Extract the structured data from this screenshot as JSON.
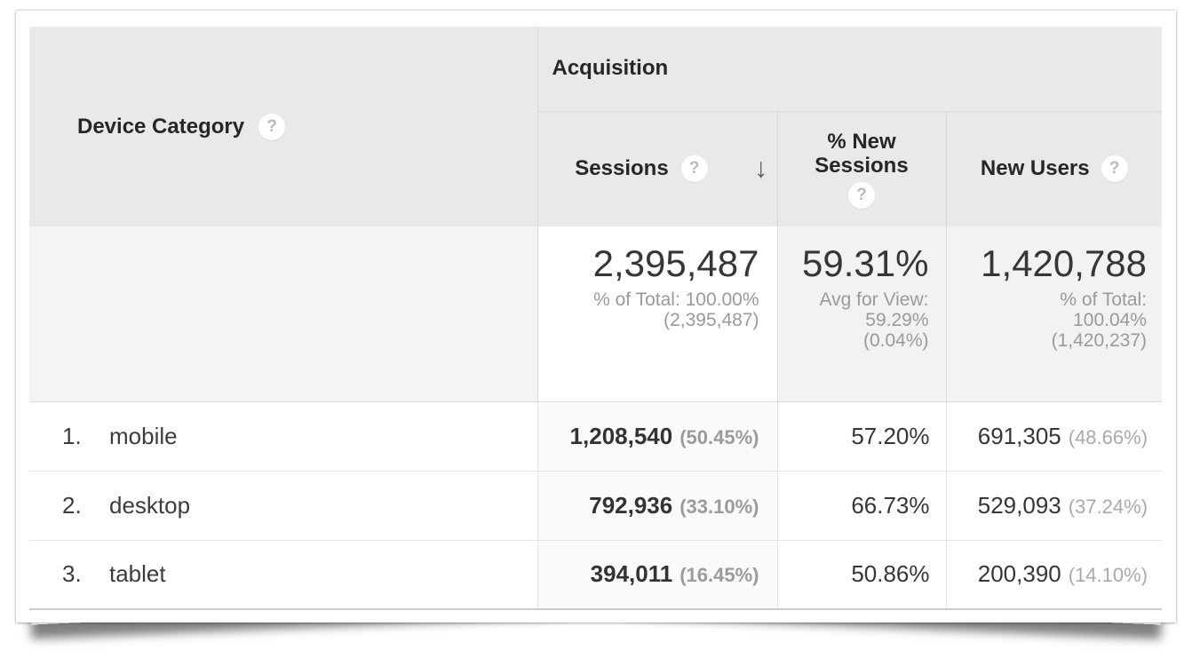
{
  "icons": {
    "help": "?",
    "sort_descending": "↓"
  },
  "colors": {
    "header_bg": "#e9e9e9",
    "header_border": "#d8d8d8",
    "summary_dimension_bg": "#f4f4f4",
    "summary_metric_bg": "#f2f2f2",
    "sorted_column_bg": "#fafafa",
    "row_divider": "#e6e6e6",
    "text_dark": "#333333",
    "text_gray": "#9a9a9a"
  },
  "table": {
    "headers": {
      "dimension": "Device Category",
      "group": "Acquisition",
      "sessions": "Sessions",
      "percent_new_sessions": "% New Sessions",
      "new_users": "New Users"
    },
    "summary": {
      "sessions": {
        "value": "2,395,487",
        "line1": "% of Total: 100.00%",
        "line2": "(2,395,487)"
      },
      "percent_new_sessions": {
        "value": "59.31%",
        "line1": "Avg for View:",
        "line2": "59.29%",
        "line3": "(0.04%)"
      },
      "new_users": {
        "value": "1,420,788",
        "line1": "% of Total:",
        "line2": "100.04%",
        "line3": "(1,420,237)"
      }
    },
    "rows": [
      {
        "index": "1.",
        "name": "mobile",
        "sessions": "1,208,540",
        "sessions_pct": "(50.45%)",
        "percent_new_sessions": "57.20%",
        "new_users": "691,305",
        "new_users_pct": "(48.66%)"
      },
      {
        "index": "2.",
        "name": "desktop",
        "sessions": "792,936",
        "sessions_pct": "(33.10%)",
        "percent_new_sessions": "66.73%",
        "new_users": "529,093",
        "new_users_pct": "(37.24%)"
      },
      {
        "index": "3.",
        "name": "tablet",
        "sessions": "394,011",
        "sessions_pct": "(16.45%)",
        "percent_new_sessions": "50.86%",
        "new_users": "200,390",
        "new_users_pct": "(14.10%)"
      }
    ]
  }
}
